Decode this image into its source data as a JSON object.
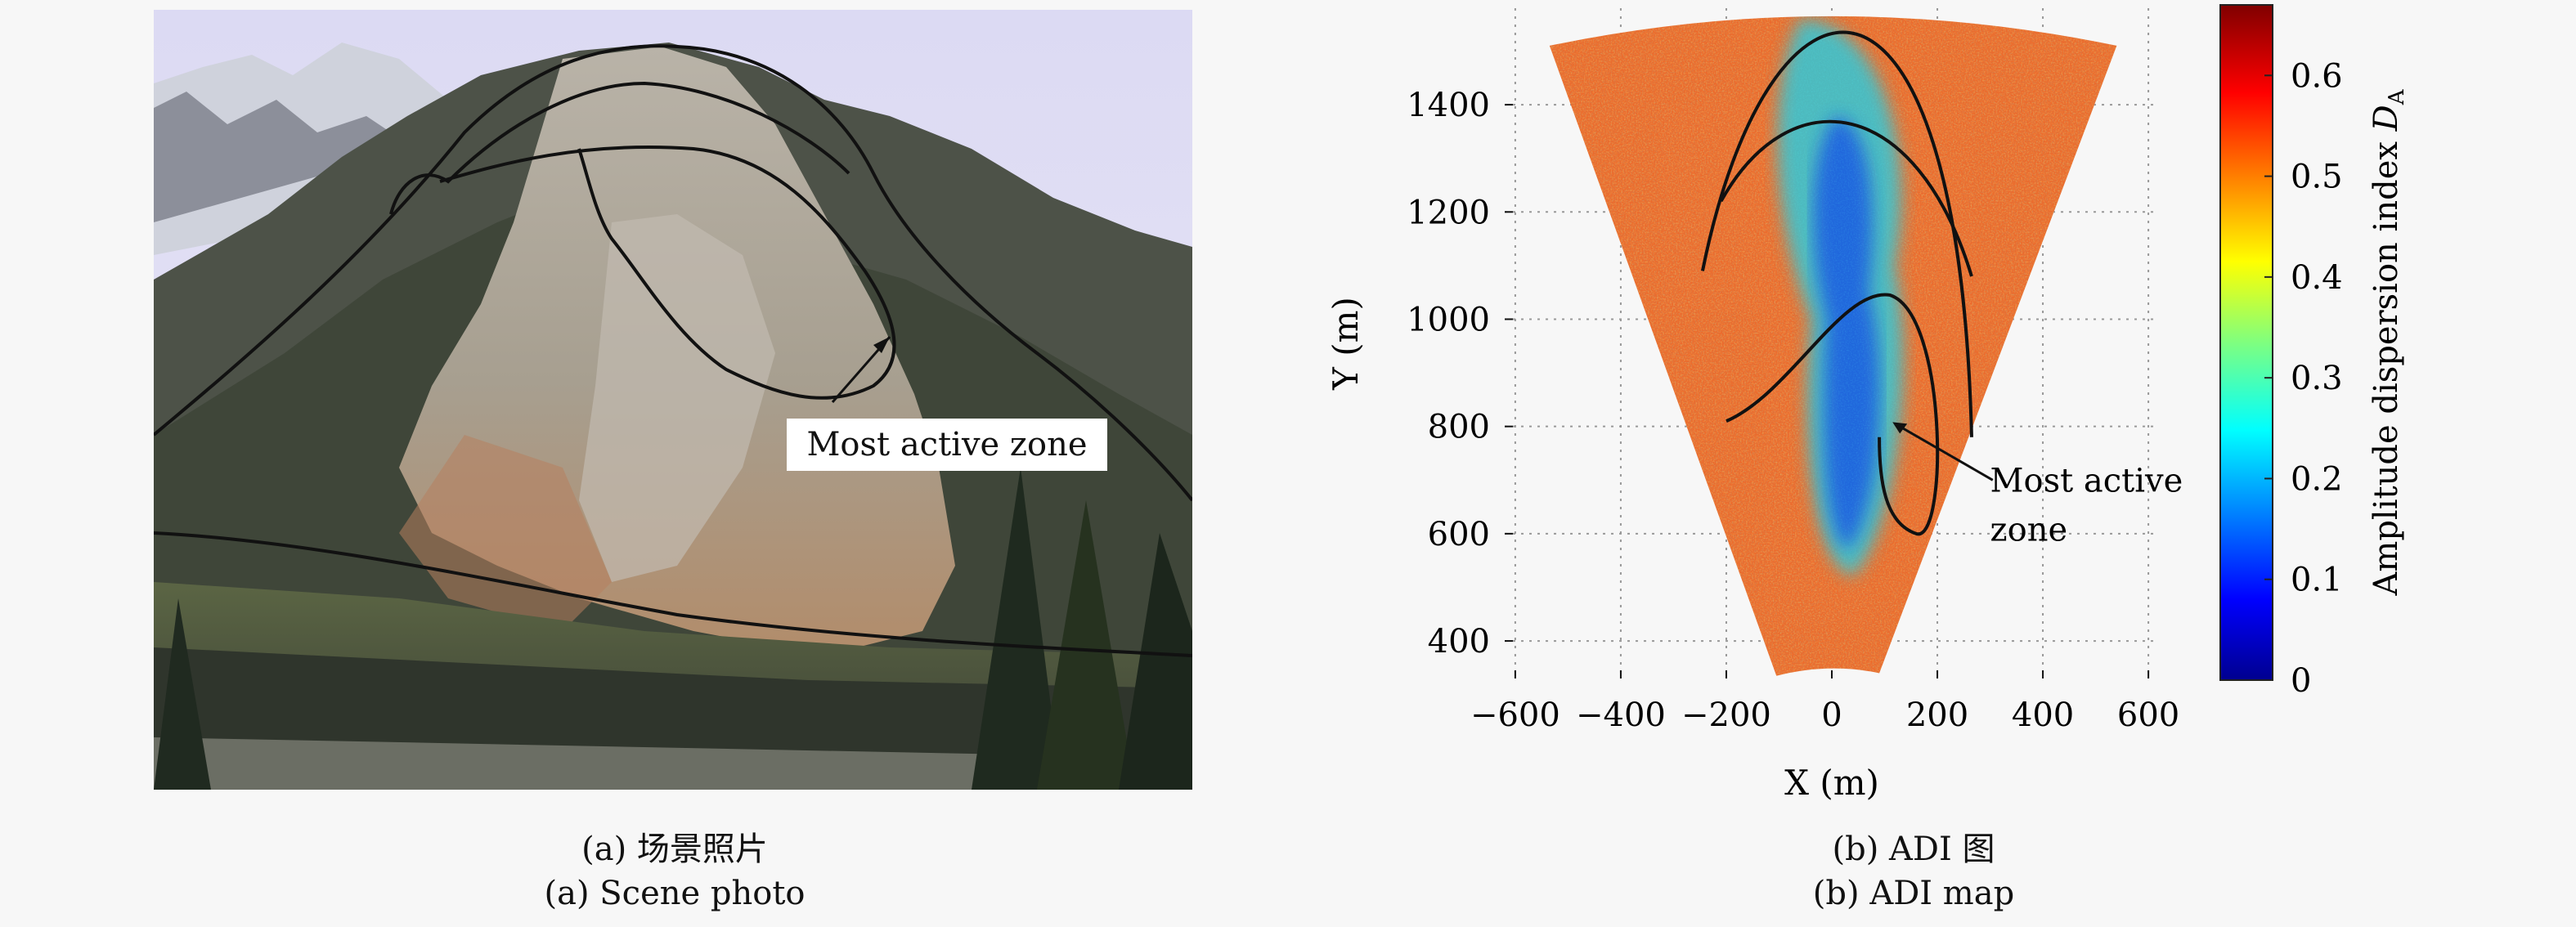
{
  "left_panel": {
    "annotation": "Most active zone",
    "caption_cn": "(a) 场景照片",
    "caption_en": "(a) Scene photo"
  },
  "right_panel": {
    "annotation_line1": "Most active",
    "annotation_line2": "zone",
    "caption_cn": "(b) ADI 图",
    "caption_en": "(b) ADI map",
    "colorbar_label_main": "Amplitude dispersion index ",
    "colorbar_label_var": "D",
    "colorbar_label_sub": "A",
    "colorbar_ticks": [
      "0",
      "0.1",
      "0.2",
      "0.3",
      "0.4",
      "0.5",
      "0.6"
    ]
  },
  "chart_data": {
    "type": "heatmap",
    "title": "",
    "xlabel": "X (m)",
    "ylabel": "Y (m)",
    "xlim": [
      -620,
      620
    ],
    "ylim": [
      330,
      1580
    ],
    "x_ticks": [
      -600,
      -400,
      -200,
      0,
      200,
      400,
      600
    ],
    "y_ticks": [
      400,
      600,
      800,
      1000,
      1200,
      1400
    ],
    "x_tick_labels": [
      "−600",
      "−400",
      "−200",
      "0",
      "200",
      "400",
      "600"
    ],
    "y_tick_labels": [
      "400",
      "600",
      "800",
      "1000",
      "1200",
      "1400"
    ],
    "colorbar_range": [
      0,
      0.67
    ],
    "colormap": "jet",
    "grid": true
  }
}
